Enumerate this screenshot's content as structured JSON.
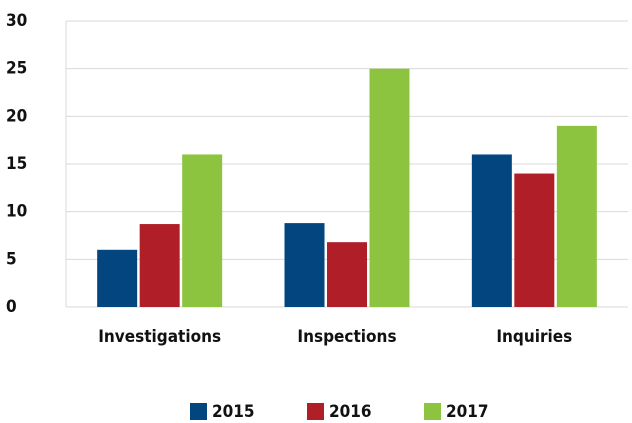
{
  "chart_data": {
    "type": "bar",
    "categories": [
      "Investigations",
      "Inspections",
      "Inquiries"
    ],
    "series": [
      {
        "name": "2015",
        "color": "#03467f",
        "values": [
          6,
          8.8,
          16
        ]
      },
      {
        "name": "2016",
        "color": "#b01e28",
        "values": [
          8.7,
          6.8,
          14
        ]
      },
      {
        "name": "2017",
        "color": "#8dc43f",
        "values": [
          16,
          25,
          19
        ]
      }
    ],
    "ylim": [
      0,
      30
    ],
    "yticks": [
      0,
      5,
      10,
      15,
      20,
      25,
      30
    ],
    "grid": true,
    "legend": "bottom"
  }
}
